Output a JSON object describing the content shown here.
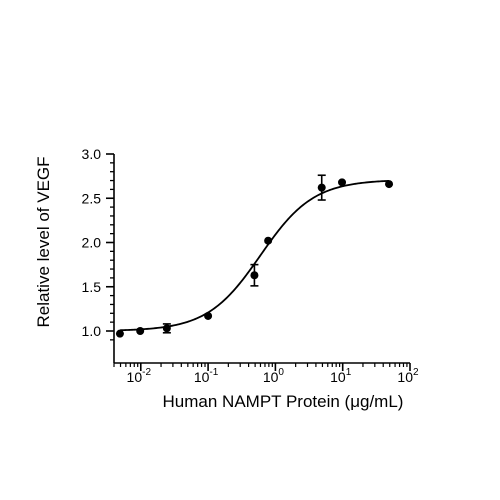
{
  "chart_data": {
    "type": "scatter",
    "title": "",
    "xlabel": "Human NAMPT Protein (μg/mL)",
    "ylabel": "Relative level of VEGF",
    "x_scale": "log",
    "xlim": [
      0.004,
      100
    ],
    "ylim": [
      0.9,
      3.0
    ],
    "x_ticks": [
      {
        "value": 0.01,
        "base": "10",
        "exp": "-2"
      },
      {
        "value": 0.1,
        "base": "10",
        "exp": "-1"
      },
      {
        "value": 1,
        "base": "10",
        "exp": "0"
      },
      {
        "value": 10,
        "base": "10",
        "exp": "1"
      },
      {
        "value": 100,
        "base": "10",
        "exp": "2"
      }
    ],
    "y_ticks": [
      {
        "value": 1.0,
        "label": "1.0"
      },
      {
        "value": 1.5,
        "label": "1.5"
      },
      {
        "value": 2.0,
        "label": "2.0"
      },
      {
        "value": 2.5,
        "label": "2.5"
      },
      {
        "value": 3.0,
        "label": "3.0"
      }
    ],
    "points": [
      {
        "x": 0.0049,
        "y": 0.97,
        "err": 0
      },
      {
        "x": 0.0098,
        "y": 1.0,
        "err": 0
      },
      {
        "x": 0.0244,
        "y": 1.03,
        "err": 0.05
      },
      {
        "x": 0.1,
        "y": 1.17,
        "err": 0
      },
      {
        "x": 0.488,
        "y": 1.63,
        "err": 0.12
      },
      {
        "x": 0.78,
        "y": 2.02,
        "err": 0
      },
      {
        "x": 4.88,
        "y": 2.62,
        "err": 0.14
      },
      {
        "x": 9.77,
        "y": 2.68,
        "err": 0
      },
      {
        "x": 48.8,
        "y": 2.66,
        "err": 0
      }
    ],
    "fit": {
      "model": "4PL",
      "bottom": 1.0,
      "top": 2.71,
      "ec50": 0.6,
      "hill": 1.1
    },
    "grid": false,
    "legend": "none",
    "color": "#000000"
  }
}
